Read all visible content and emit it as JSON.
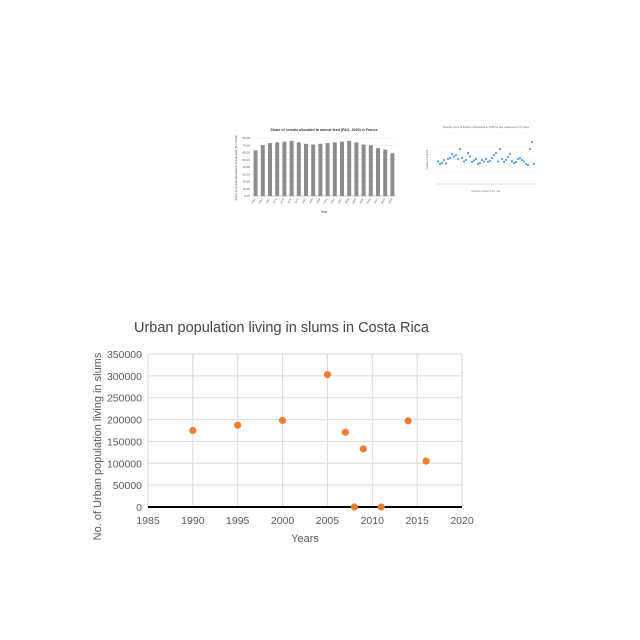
{
  "colors": {
    "page_background": "#ffffff",
    "bar_fill": "#8c8c8c",
    "thumb_scatter_point": "#5b9bd5",
    "main_point": "#ed7d31",
    "grid": "#d9d9d9",
    "axis": "#000000",
    "text": "#595959"
  },
  "chart_data": [
    {
      "type": "bar",
      "title": "Share of cereals allocated to animal feed (FAO, 2020) in France",
      "xlabel": "Year",
      "ylabel": "Share of cereals allocated to animal feed (% of total)",
      "ylim": [
        0,
        80
      ],
      "yticks": [
        "0.00",
        "10.00",
        "20.00",
        "30.00",
        "40.00",
        "50.00",
        "60.00",
        "70.00",
        "80.00"
      ],
      "categories": [
        "1961",
        "1964",
        "1967",
        "1970",
        "1973",
        "1976",
        "1979",
        "1982",
        "1985",
        "1988",
        "1991",
        "1994",
        "1997",
        "2000",
        "2003",
        "2006",
        "2009",
        "2012",
        "2015",
        "2018"
      ],
      "values": [
        63,
        70,
        73,
        74,
        75,
        76,
        74,
        72,
        71,
        72,
        73,
        74,
        75,
        76,
        74,
        71,
        70,
        66,
        64,
        59
      ],
      "grid": true,
      "legend": "none"
    },
    {
      "type": "scatter",
      "title": "Monthly count of floods in Panorama in 2018 for age measured in 70 years",
      "xlabel": "Number of flood in the Year",
      "ylabel": "Number of Rainfall",
      "xlim": [
        0,
        100
      ],
      "ylim": [
        0,
        100
      ],
      "x": [
        2,
        4,
        6,
        8,
        10,
        12,
        14,
        16,
        18,
        20,
        22,
        24,
        26,
        28,
        30,
        32,
        34,
        36,
        38,
        40,
        42,
        44,
        46,
        48,
        50,
        52,
        54,
        56,
        58,
        60,
        62,
        64,
        66,
        68,
        70,
        72,
        74,
        76,
        78,
        80,
        82,
        84,
        86,
        88,
        90,
        92,
        94,
        96,
        98
      ],
      "y": [
        45,
        40,
        42,
        48,
        41,
        50,
        52,
        60,
        55,
        58,
        50,
        70,
        52,
        45,
        48,
        62,
        55,
        44,
        47,
        50,
        40,
        42,
        48,
        45,
        50,
        44,
        46,
        52,
        58,
        62,
        45,
        70,
        50,
        44,
        48,
        54,
        60,
        46,
        42,
        44,
        50,
        52,
        48,
        45,
        40,
        38,
        70,
        84,
        40
      ],
      "grid": true,
      "legend": "none"
    },
    {
      "type": "scatter",
      "title": "Urban population living in slums in Costa Rica",
      "xlabel": "Years",
      "ylabel": "No. of Urban population living in slums",
      "xlim": [
        1985,
        2020
      ],
      "ylim": [
        0,
        350000
      ],
      "xticks": [
        "1985",
        "1990",
        "1995",
        "2000",
        "2005",
        "2010",
        "2015",
        "2020"
      ],
      "yticks": [
        "0",
        "50000",
        "100000",
        "150000",
        "200000",
        "250000",
        "300000",
        "350000"
      ],
      "x": [
        1990,
        1995,
        2000,
        2005,
        2007,
        2008,
        2009,
        2011,
        2014,
        2016
      ],
      "y": [
        175000,
        187000,
        198000,
        303000,
        171000,
        0,
        133000,
        0,
        197000,
        105000
      ],
      "grid": true,
      "legend": "none"
    }
  ]
}
